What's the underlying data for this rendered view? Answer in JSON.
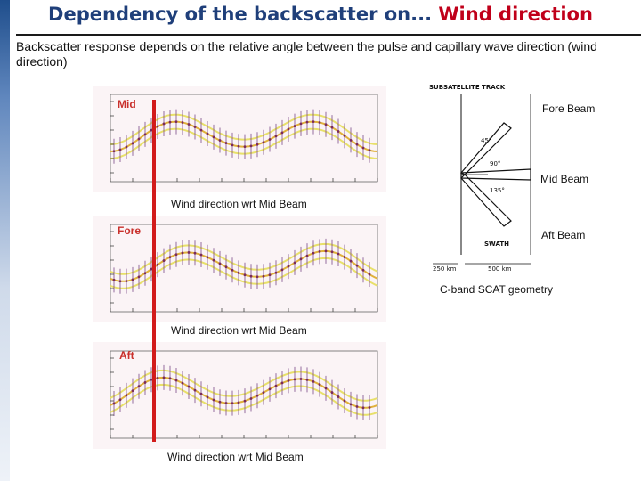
{
  "slide": {
    "title_prefix": "Dependency of the backscatter on... ",
    "title_accent": "Wind direction",
    "subtitle": "Backscatter response depends on the relative angle between the pulse and capillary wave direction (wind direction)"
  },
  "plots": [
    {
      "label": "Mid",
      "xlabel": "Wind direction wrt Mid Beam"
    },
    {
      "label": "Fore",
      "xlabel": "Wind direction wrt Mid Beam"
    },
    {
      "label": "Aft",
      "xlabel": "Wind direction wrt Mid Beam"
    }
  ],
  "diagram": {
    "track_label": "SUBSATELLITE TRACK",
    "angles": [
      "45°",
      "90°",
      "135°"
    ],
    "swath_label": "SWATH",
    "dist_left": "250 km",
    "dist_right": "500 km",
    "beams": {
      "fore": "Fore Beam",
      "mid": "Mid Beam",
      "aft": "Aft Beam"
    },
    "caption": "C-band SCAT geometry"
  },
  "colors": {
    "title": "#1f3f7a",
    "accent": "#c0001a",
    "marker": "#d21b1b"
  }
}
